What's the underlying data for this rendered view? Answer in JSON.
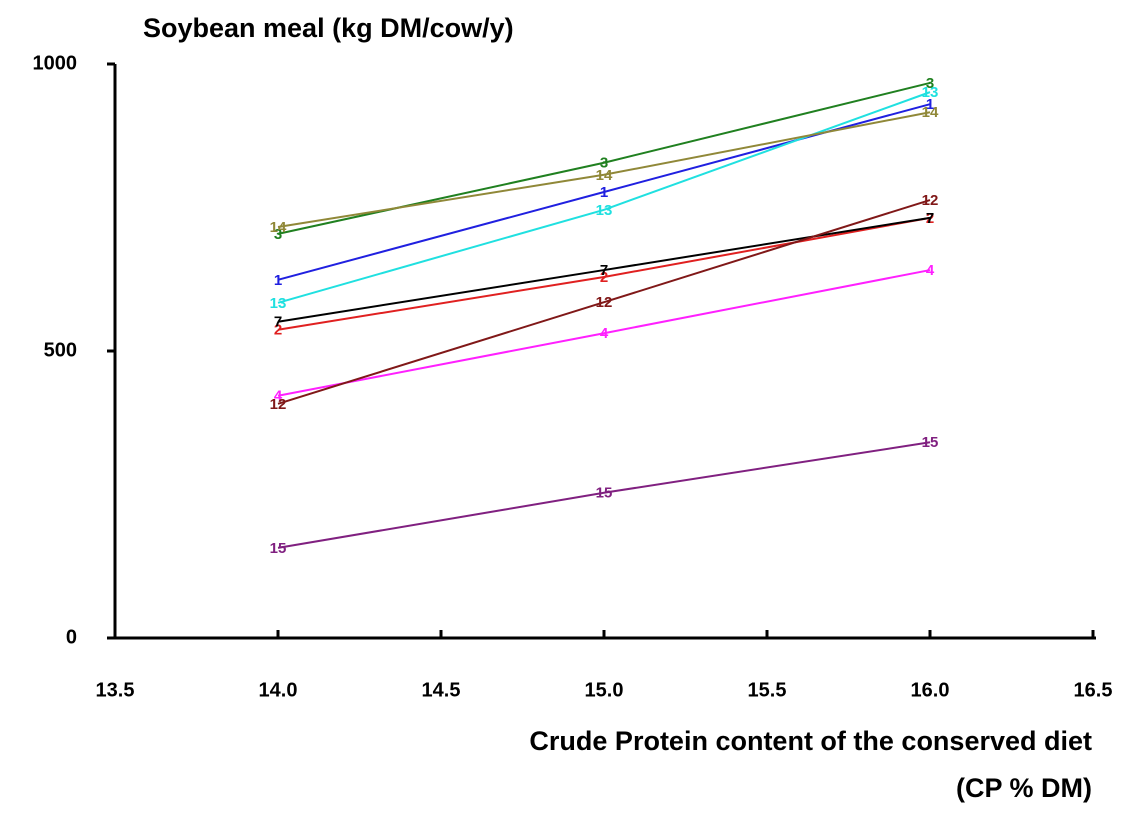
{
  "chart_data": {
    "type": "line",
    "title": "Soybean meal (kg DM/cow/y)",
    "xlabel": [
      "Crude Protein content of the conserved diet",
      "(CP % DM)"
    ],
    "x": [
      14,
      15,
      16
    ],
    "xlim": [
      13.5,
      16.5
    ],
    "xticks": [
      13.5,
      {
        "value": 14,
        "label": "14.0"
      },
      14.5,
      {
        "value": 15,
        "label": "15.0"
      },
      15.5,
      {
        "value": 16,
        "label": "16.0"
      },
      16.5
    ],
    "ylim": [
      0,
      1000
    ],
    "yticks": [
      0,
      500,
      1000
    ],
    "grid": false,
    "series": [
      {
        "name": "1",
        "color": "#2020e0",
        "values": [
          624,
          777,
          930
        ]
      },
      {
        "name": "2",
        "color": "#e02020",
        "values": [
          537,
          629,
          732
        ]
      },
      {
        "name": "3",
        "color": "#208020",
        "values": [
          704,
          828,
          967
        ]
      },
      {
        "name": "4",
        "color": "#ff20ff",
        "values": [
          422,
          531,
          641
        ]
      },
      {
        "name": "7",
        "color": "#000000",
        "values": [
          551,
          641,
          732
        ]
      },
      {
        "name": "12",
        "color": "#801818",
        "values": [
          408,
          585,
          763
        ]
      },
      {
        "name": "13",
        "color": "#20e0e0",
        "values": [
          584,
          746,
          951
        ]
      },
      {
        "name": "14",
        "color": "#908838",
        "values": [
          716,
          807,
          916
        ]
      },
      {
        "name": "15",
        "color": "#802080",
        "values": [
          157,
          253,
          341
        ]
      }
    ]
  }
}
